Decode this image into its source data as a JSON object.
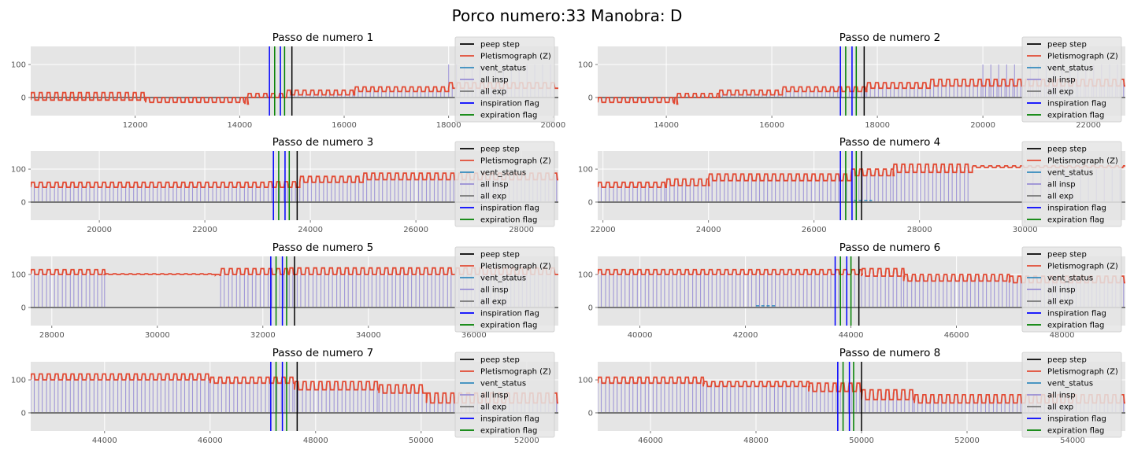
{
  "figure": {
    "title": "Porco numero:33 Manobra: D"
  },
  "chart_data": {
    "type": "line",
    "grid": true,
    "legend_placement": "upper-right",
    "legend": [
      {
        "name": "peep step",
        "color": "#000000"
      },
      {
        "name": "Pletismograph (Z)",
        "color": "#e24a33"
      },
      {
        "name": "vent_status",
        "color": "#348abd"
      },
      {
        "name": "all insp",
        "color": "#988ed5"
      },
      {
        "name": "all exp",
        "color": "#777777"
      },
      {
        "name": "inspiration flag",
        "color": "#0000ff"
      },
      {
        "name": "expiration flag",
        "color": "#008000"
      }
    ],
    "yticks": [
      0,
      100
    ],
    "ylim": [
      -55,
      155
    ],
    "panels": [
      {
        "title": "Passo de numero 1",
        "xlim": [
          10000,
          20100
        ],
        "xticks": [
          12000,
          14000,
          16000,
          18000,
          20000
        ],
        "peep_step": 15000,
        "inspiration_flags": [
          14570,
          14780
        ],
        "expiration_flags": [
          14670,
          14860
        ],
        "pleth_segments": [
          [
            10000,
            -8,
            15,
            0
          ],
          [
            12200,
            -15,
            0,
            0
          ],
          [
            14100,
            -20,
            0,
            0
          ],
          [
            14150,
            0,
            12,
            0
          ],
          [
            14900,
            8,
            22,
            0
          ],
          [
            16200,
            18,
            32,
            0
          ],
          [
            18000,
            28,
            45,
            0
          ],
          [
            20100,
            35,
            60,
            0
          ]
        ],
        "insp_bars": [
          [
            18000,
            20100,
            100
          ]
        ],
        "vent_status": []
      },
      {
        "title": "Passo de numero 2",
        "xlim": [
          12700,
          22700
        ],
        "xticks": [
          14000,
          16000,
          18000,
          20000,
          22000
        ],
        "peep_step": 17750,
        "inspiration_flags": [
          17300,
          17520
        ],
        "expiration_flags": [
          17400,
          17600
        ],
        "pleth_segments": [
          [
            12700,
            -15,
            0,
            0
          ],
          [
            14150,
            -20,
            0,
            0
          ],
          [
            14200,
            0,
            12,
            0
          ],
          [
            15000,
            8,
            22,
            0
          ],
          [
            16200,
            18,
            32,
            0
          ],
          [
            17800,
            28,
            45,
            0
          ],
          [
            19000,
            35,
            55,
            0
          ],
          [
            22700,
            40,
            58,
            0
          ]
        ],
        "insp_bars": [
          [
            20000,
            22700,
            100
          ]
        ],
        "vent_status": []
      },
      {
        "title": "Passo de numero 3",
        "xlim": [
          18700,
          28700
        ],
        "xticks": [
          20000,
          22000,
          24000,
          26000,
          28000
        ],
        "peep_step": 23750,
        "inspiration_flags": [
          23300,
          23520
        ],
        "expiration_flags": [
          23400,
          23600
        ],
        "pleth_segments": [
          [
            18700,
            45,
            60,
            1
          ],
          [
            23200,
            45,
            62,
            1
          ],
          [
            23800,
            60,
            78,
            1
          ],
          [
            25000,
            68,
            88,
            1
          ],
          [
            28700,
            75,
            108,
            1
          ]
        ],
        "insp_bars": [],
        "vent_status": []
      },
      {
        "title": "Passo de numero 4",
        "xlim": [
          21900,
          31900
        ],
        "xticks": [
          22000,
          24000,
          26000,
          28000,
          30000
        ],
        "peep_step": 26900,
        "inspiration_flags": [
          26500,
          26720
        ],
        "expiration_flags": [
          26600,
          26800
        ],
        "pleth_segments": [
          [
            21900,
            45,
            60,
            1
          ],
          [
            23200,
            50,
            70,
            1
          ],
          [
            24000,
            65,
            85,
            1
          ],
          [
            26700,
            80,
            100,
            1
          ],
          [
            27500,
            90,
            115,
            1
          ],
          [
            29000,
            105,
            110,
            0
          ],
          [
            31900,
            95,
            100,
            0
          ]
        ],
        "insp_bars": [
          [
            30000,
            31900,
            100
          ]
        ],
        "vent_status": [
          [
            26750,
            27100,
            5
          ]
        ]
      },
      {
        "title": "Passo de numero 5",
        "xlim": [
          27600,
          37600
        ],
        "xticks": [
          28000,
          30000,
          32000,
          34000,
          36000
        ],
        "peep_step": 32600,
        "inspiration_flags": [
          32150,
          32370
        ],
        "expiration_flags": [
          32250,
          32450
        ],
        "pleth_segments": [
          [
            27600,
            100,
            115,
            1
          ],
          [
            29000,
            100,
            102,
            0
          ],
          [
            31100,
            98,
            100,
            0
          ],
          [
            31200,
            100,
            118,
            1
          ],
          [
            32500,
            100,
            120,
            1
          ],
          [
            37600,
            100,
            115,
            1
          ]
        ],
        "insp_bars": [],
        "vent_status": []
      },
      {
        "title": "Passo de numero 6",
        "xlim": [
          39200,
          49200
        ],
        "xticks": [
          40000,
          42000,
          44000,
          46000,
          48000
        ],
        "peep_step": 44150,
        "inspiration_flags": [
          43700,
          43920
        ],
        "expiration_flags": [
          43800,
          44000
        ],
        "pleth_segments": [
          [
            39200,
            100,
            115,
            1
          ],
          [
            44200,
            95,
            118,
            1
          ],
          [
            45000,
            80,
            100,
            1
          ],
          [
            47000,
            75,
            95,
            1
          ],
          [
            49200,
            60,
            90,
            1
          ]
        ],
        "insp_bars": [],
        "vent_status": [
          [
            42200,
            42600,
            5
          ]
        ]
      },
      {
        "title": "Passo de numero 7",
        "xlim": [
          42600,
          52600
        ],
        "xticks": [
          44000,
          46000,
          48000,
          50000,
          52000
        ],
        "peep_step": 47650,
        "inspiration_flags": [
          47150,
          47370
        ],
        "expiration_flags": [
          47250,
          47450
        ],
        "pleth_segments": [
          [
            42600,
            100,
            118,
            1
          ],
          [
            46000,
            90,
            108,
            1
          ],
          [
            47600,
            70,
            95,
            1
          ],
          [
            49200,
            60,
            85,
            1
          ],
          [
            50100,
            30,
            60,
            0
          ],
          [
            52600,
            20,
            50,
            0
          ]
        ],
        "insp_bars": [],
        "vent_status": []
      },
      {
        "title": "Passo de numero 8",
        "xlim": [
          45000,
          55000
        ],
        "xticks": [
          46000,
          48000,
          50000,
          52000,
          54000
        ],
        "peep_step": 50000,
        "inspiration_flags": [
          49550,
          49770
        ],
        "expiration_flags": [
          49650,
          49850
        ],
        "pleth_segments": [
          [
            45000,
            90,
            108,
            1
          ],
          [
            47000,
            80,
            95,
            1
          ],
          [
            49000,
            65,
            90,
            1
          ],
          [
            50000,
            40,
            70,
            1
          ],
          [
            51000,
            30,
            55,
            0
          ],
          [
            55000,
            20,
            50,
            0
          ]
        ],
        "insp_bars": [],
        "vent_status": []
      }
    ]
  }
}
